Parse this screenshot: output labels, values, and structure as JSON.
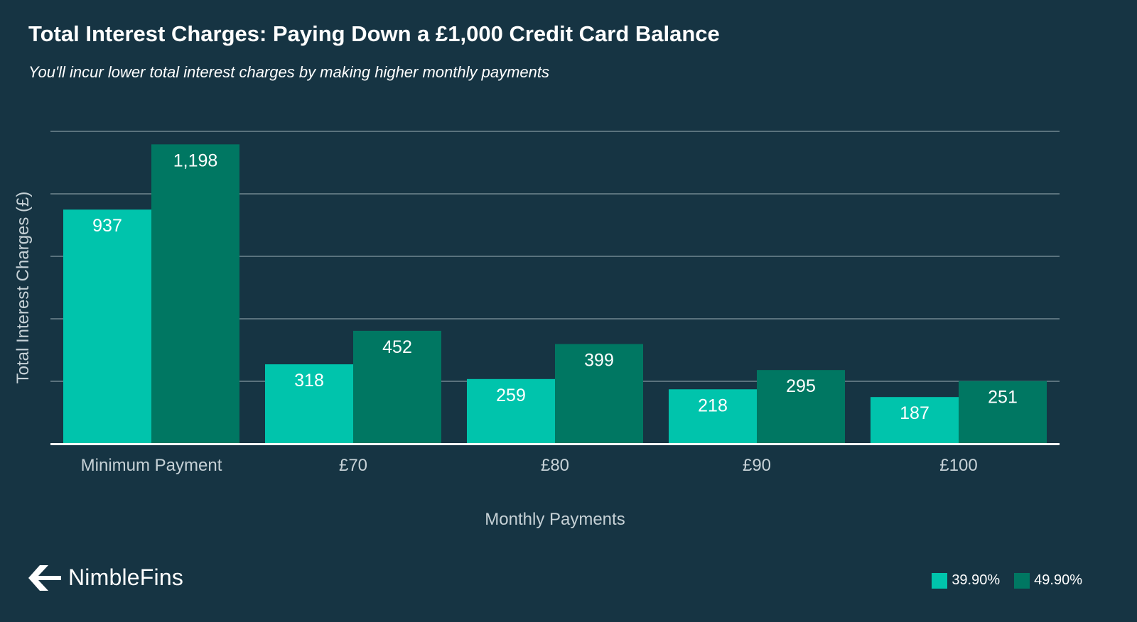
{
  "header": {
    "title": "Total Interest Charges: Paying Down a £1,000 Credit Card Balance",
    "subtitle": "You'll incur lower total interest charges by making higher monthly payments"
  },
  "brand": {
    "name": "NimbleFins",
    "logo_icon": "arrow-left-icon"
  },
  "colors": {
    "background": "#163443",
    "series_39_90": "#00C4AC",
    "series_49_90": "#007762",
    "gridline": "#8396A0",
    "axis": "#ffffff",
    "axis_text": "#C6D1D6"
  },
  "chart_data": {
    "type": "bar",
    "title": "Total Interest Charges: Paying Down a £1,000 Credit Card Balance",
    "subtitle": "You'll incur lower total interest charges by making higher monthly payments",
    "xlabel": "Monthly Payments",
    "ylabel": "Total Interest Charges (£)",
    "categories": [
      "Minimum Payment",
      "£70",
      "£80",
      "£90",
      "£100"
    ],
    "series": [
      {
        "name": "39.90%",
        "color": "#00C4AC",
        "values": [
          937,
          318,
          259,
          218,
          187
        ],
        "labels": [
          "937",
          "318",
          "259",
          "218",
          "187"
        ]
      },
      {
        "name": "49.90%",
        "color": "#007762",
        "values": [
          1198,
          452,
          399,
          295,
          251
        ],
        "labels": [
          "1,198",
          "452",
          "399",
          "295",
          "251"
        ]
      }
    ],
    "ylim": [
      0,
      1250
    ],
    "ygrid_step": 250,
    "grid": true,
    "y_tick_labels_shown": false,
    "legend_position": "bottom-right"
  }
}
